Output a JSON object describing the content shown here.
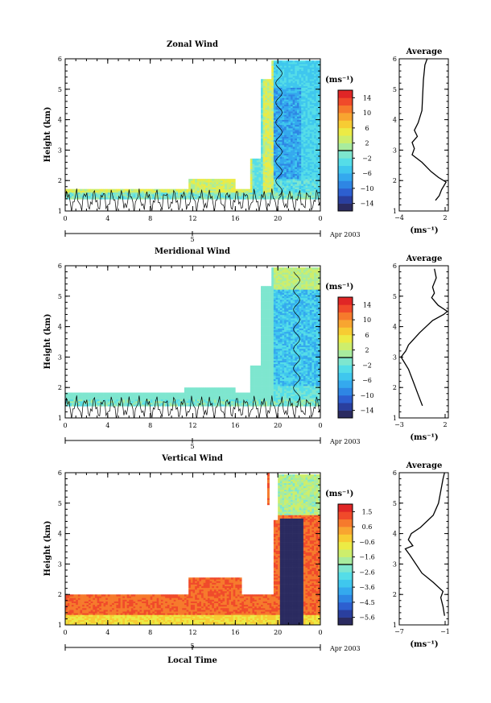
{
  "chart_data": [
    {
      "type": "heatmap",
      "title": "Zonal Wind",
      "ylabel": "Height (km)",
      "x_ticks": [
        "0",
        "4",
        "8",
        "12",
        "16",
        "20",
        "0"
      ],
      "y_ticks": [
        "1",
        "2",
        "3",
        "4",
        "5",
        "6"
      ],
      "xlim": [
        0,
        24
      ],
      "ylim": [
        1,
        6
      ],
      "date_axis": {
        "day": "5",
        "month_label": "Apr 2003"
      },
      "colorbar": {
        "unit": "(ms⁻¹)",
        "ticks": [
          "14",
          "10",
          "6",
          "2",
          "−2",
          "−6",
          "−10",
          "−14"
        ],
        "range": [
          -16,
          16
        ]
      },
      "profile": {
        "title": "Average",
        "xlabel": "(ms⁻¹)",
        "x_ticks": [
          "−4",
          "2"
        ],
        "xlim": [
          -4,
          2.5
        ],
        "points": [
          [
            0.8,
            1.35
          ],
          [
            1.3,
            1.5
          ],
          [
            1.6,
            1.7
          ],
          [
            2.2,
            1.95
          ],
          [
            1.2,
            2.1
          ],
          [
            0.2,
            2.3
          ],
          [
            -1.0,
            2.6
          ],
          [
            -2.3,
            2.85
          ],
          [
            -2.0,
            3.05
          ],
          [
            -2.3,
            3.25
          ],
          [
            -1.6,
            3.45
          ],
          [
            -2.0,
            3.65
          ],
          [
            -1.5,
            3.9
          ],
          [
            -1.0,
            4.3
          ],
          [
            -0.9,
            4.8
          ],
          [
            -0.8,
            5.3
          ],
          [
            -0.6,
            5.8
          ],
          [
            -0.3,
            6.0
          ]
        ]
      }
    },
    {
      "type": "heatmap",
      "title": "Meridional Wind",
      "ylabel": "Height (km)",
      "x_ticks": [
        "0",
        "4",
        "8",
        "12",
        "16",
        "20",
        "0"
      ],
      "y_ticks": [
        "1",
        "2",
        "3",
        "4",
        "5",
        "6"
      ],
      "xlim": [
        0,
        24
      ],
      "ylim": [
        1,
        6
      ],
      "date_axis": {
        "day": "5",
        "month_label": "Apr 2003"
      },
      "colorbar": {
        "unit": "(ms⁻¹)",
        "ticks": [
          "14",
          "10",
          "6",
          "2",
          "−2",
          "−6",
          "−10",
          "−14"
        ],
        "range": [
          -16,
          16
        ]
      },
      "profile": {
        "title": "Average",
        "xlabel": "(ms⁻¹)",
        "x_ticks": [
          "−3",
          "2"
        ],
        "xlim": [
          -3,
          2.3
        ],
        "points": [
          [
            -0.5,
            1.4
          ],
          [
            -1.0,
            1.8
          ],
          [
            -1.5,
            2.2
          ],
          [
            -2.0,
            2.6
          ],
          [
            -2.8,
            3.0
          ],
          [
            -2.3,
            3.2
          ],
          [
            -2.0,
            3.4
          ],
          [
            -0.8,
            3.8
          ],
          [
            0.6,
            4.2
          ],
          [
            1.8,
            4.4
          ],
          [
            2.2,
            4.5
          ],
          [
            1.2,
            4.7
          ],
          [
            0.5,
            4.95
          ],
          [
            0.8,
            5.1
          ],
          [
            0.6,
            5.3
          ],
          [
            1.0,
            5.6
          ],
          [
            0.8,
            5.9
          ]
        ]
      }
    },
    {
      "type": "heatmap",
      "title": "Vertical Wind",
      "ylabel": "Height (km)",
      "xlabel": "Local Time",
      "x_ticks": [
        "0",
        "4",
        "8",
        "12",
        "16",
        "20",
        "0"
      ],
      "y_ticks": [
        "1",
        "2",
        "3",
        "4",
        "5",
        "6"
      ],
      "xlim": [
        0,
        24
      ],
      "ylim": [
        1,
        6
      ],
      "date_axis": {
        "day": "5",
        "month_label": "Apr 2003"
      },
      "colorbar": {
        "unit": "(ms⁻¹)",
        "ticks": [
          "1.5",
          "0.6",
          "−0.6",
          "−1.6",
          "−2.6",
          "−3.6",
          "−4.5",
          "−5.6"
        ],
        "range": [
          -6.0,
          2.0
        ]
      },
      "profile": {
        "title": "Average",
        "xlabel": "(ms⁻¹)",
        "x_ticks": [
          "−7",
          "−1"
        ],
        "xlim": [
          -7,
          -0.5
        ],
        "points": [
          [
            -1.0,
            1.3
          ],
          [
            -1.2,
            1.6
          ],
          [
            -1.5,
            1.9
          ],
          [
            -1.2,
            2.1
          ],
          [
            -2.5,
            2.4
          ],
          [
            -4.0,
            2.7
          ],
          [
            -4.8,
            3.0
          ],
          [
            -5.6,
            3.3
          ],
          [
            -6.2,
            3.5
          ],
          [
            -5.2,
            3.6
          ],
          [
            -5.8,
            3.8
          ],
          [
            -5.4,
            4.0
          ],
          [
            -4.2,
            4.2
          ],
          [
            -2.5,
            4.6
          ],
          [
            -1.8,
            5.0
          ],
          [
            -1.5,
            5.4
          ],
          [
            -1.2,
            5.8
          ],
          [
            -1.0,
            6.0
          ]
        ]
      }
    }
  ]
}
